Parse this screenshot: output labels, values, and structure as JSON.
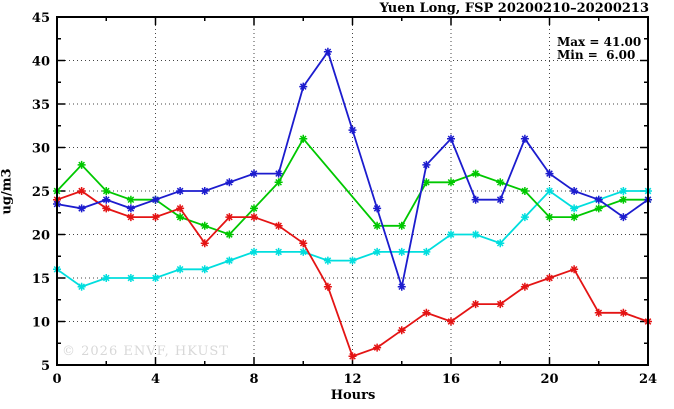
{
  "title": "Yuen Long, FSP 20200210–20200213",
  "stats": {
    "max_label": "Max = 41.00",
    "min_label": "Min =  6.00"
  },
  "watermark": "© 2026 ENVF, HKUST",
  "axes": {
    "ylabel": "ug/m3",
    "xlabel": "Hours"
  },
  "chart_data": {
    "type": "line",
    "title": "Yuen Long, FSP 20200210–20200213",
    "xlabel": "Hours",
    "ylabel": "ug/m3",
    "xlim": [
      0,
      24
    ],
    "ylim": [
      5,
      45
    ],
    "xticks": [
      0,
      4,
      8,
      12,
      16,
      20,
      24
    ],
    "yticks": [
      5,
      10,
      15,
      20,
      25,
      30,
      35,
      40,
      45
    ],
    "grid": true,
    "legend": "none",
    "stat_max": 41.0,
    "stat_min": 6.0,
    "x": [
      0,
      1,
      2,
      3,
      4,
      5,
      6,
      7,
      8,
      9,
      10,
      11,
      12,
      13,
      14,
      15,
      16,
      17,
      18,
      19,
      20,
      21,
      22,
      23,
      24
    ],
    "series": [
      {
        "name": "cyan-line",
        "color": "#00dede",
        "values": [
          16,
          14,
          15,
          15,
          15,
          16,
          16,
          17,
          18,
          18,
          18,
          17,
          17,
          18,
          18,
          18,
          20,
          20,
          19,
          22,
          25,
          23,
          24,
          25,
          25
        ]
      },
      {
        "name": "green-line",
        "color": "#00c800",
        "values": [
          25,
          28,
          25,
          24,
          24,
          22,
          21,
          20,
          23,
          26,
          31,
          null,
          null,
          21,
          21,
          26,
          26,
          27,
          26,
          25,
          22,
          22,
          23,
          24,
          24
        ]
      },
      {
        "name": "red-line",
        "color": "#e41414",
        "values": [
          24,
          25,
          23,
          22,
          22,
          23,
          19,
          22,
          22,
          21,
          19,
          14,
          6,
          7,
          9,
          11,
          10,
          12,
          12,
          14,
          15,
          16,
          11,
          11,
          10
        ]
      },
      {
        "name": "blue-line",
        "color": "#1c1cce",
        "values": [
          23.5,
          23,
          24,
          23,
          24,
          25,
          25,
          26,
          27,
          27,
          37,
          41,
          32,
          23,
          14,
          28,
          31,
          24,
          24,
          31,
          27,
          25,
          24,
          22,
          24
        ]
      }
    ]
  }
}
